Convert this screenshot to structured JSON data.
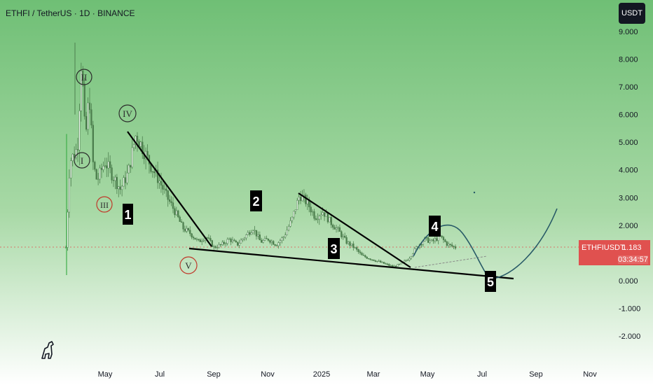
{
  "header": {
    "title": "ETHFI / TetherUS · 1D · BINANCE"
  },
  "currency_button": "USDT",
  "price_tag": {
    "symbol": "ETHFIUSDT",
    "price": "1.183",
    "countdown": "03:34:57",
    "color": "#e0514f"
  },
  "colors": {
    "bg_green_top": "#6fbf75",
    "bg_green_bottom": "#ffffff",
    "candle": "#4d7f4e",
    "trend_line": "#000000",
    "arc": "#285a67",
    "red_circle": "#c0392b"
  },
  "chart_data": {
    "type": "candlestick",
    "title": "ETHFI / TetherUS · 1D · BINANCE",
    "y_ticks": [
      "9.000",
      "8.000",
      "7.000",
      "6.000",
      "5.000",
      "4.000",
      "3.000",
      "2.000",
      "1.000",
      "0.000",
      "-1.000",
      "-2.000"
    ],
    "y_tick_values": [
      9,
      8,
      7,
      6,
      5,
      4,
      3,
      2,
      1,
      0,
      -1,
      -2
    ],
    "x_ticks": [
      "May",
      "Jul",
      "Sep",
      "Nov",
      "2025",
      "Mar",
      "May",
      "Jul",
      "Sep",
      "Nov"
    ],
    "ylim": [
      -2.5,
      9.0
    ],
    "grid": false,
    "last_price": 1.183,
    "wave_labels": [
      {
        "label": "I",
        "style": "circle-dark"
      },
      {
        "label": "II",
        "style": "circle-dark"
      },
      {
        "label": "III",
        "style": "circle-red"
      },
      {
        "label": "IV",
        "style": "circle-dark"
      },
      {
        "label": "V",
        "style": "circle-red"
      },
      {
        "label": "1",
        "style": "box"
      },
      {
        "label": "2",
        "style": "box"
      },
      {
        "label": "3",
        "style": "box"
      },
      {
        "label": "4",
        "style": "box"
      },
      {
        "label": "5",
        "style": "box"
      }
    ],
    "price_path": [
      [
        0,
        1.2
      ],
      [
        0.01,
        4.3
      ],
      [
        0.03,
        4.8
      ],
      [
        0.04,
        8.1
      ],
      [
        0.05,
        5.0
      ],
      [
        0.06,
        6.8
      ],
      [
        0.07,
        4.2
      ],
      [
        0.08,
        3.6
      ],
      [
        0.1,
        4.3
      ],
      [
        0.12,
        3.8
      ],
      [
        0.14,
        3.3
      ],
      [
        0.16,
        3.9
      ],
      [
        0.18,
        5.3
      ],
      [
        0.2,
        4.7
      ],
      [
        0.22,
        4.1
      ],
      [
        0.24,
        3.6
      ],
      [
        0.26,
        3.0
      ],
      [
        0.28,
        2.5
      ],
      [
        0.3,
        1.9
      ],
      [
        0.32,
        1.7
      ],
      [
        0.34,
        1.4
      ],
      [
        0.36,
        1.6
      ],
      [
        0.38,
        1.2
      ],
      [
        0.4,
        1.3
      ],
      [
        0.42,
        1.5
      ],
      [
        0.44,
        1.3
      ],
      [
        0.46,
        1.6
      ],
      [
        0.48,
        1.9
      ],
      [
        0.5,
        1.4
      ],
      [
        0.52,
        1.5
      ],
      [
        0.54,
        1.3
      ],
      [
        0.56,
        1.6
      ],
      [
        0.58,
        2.2
      ],
      [
        0.6,
        3.1
      ],
      [
        0.62,
        2.8
      ],
      [
        0.64,
        2.3
      ],
      [
        0.66,
        2.5
      ],
      [
        0.68,
        2.1
      ],
      [
        0.7,
        1.8
      ],
      [
        0.72,
        1.4
      ],
      [
        0.74,
        1.2
      ],
      [
        0.76,
        0.9
      ],
      [
        0.78,
        0.8
      ],
      [
        0.8,
        0.7
      ],
      [
        0.82,
        0.6
      ],
      [
        0.84,
        0.5
      ],
      [
        0.86,
        0.6
      ],
      [
        0.88,
        0.8
      ],
      [
        0.9,
        1.2
      ],
      [
        0.92,
        1.5
      ],
      [
        0.94,
        1.4
      ],
      [
        0.96,
        1.6
      ],
      [
        0.98,
        1.3
      ],
      [
        1.0,
        1.2
      ]
    ]
  }
}
